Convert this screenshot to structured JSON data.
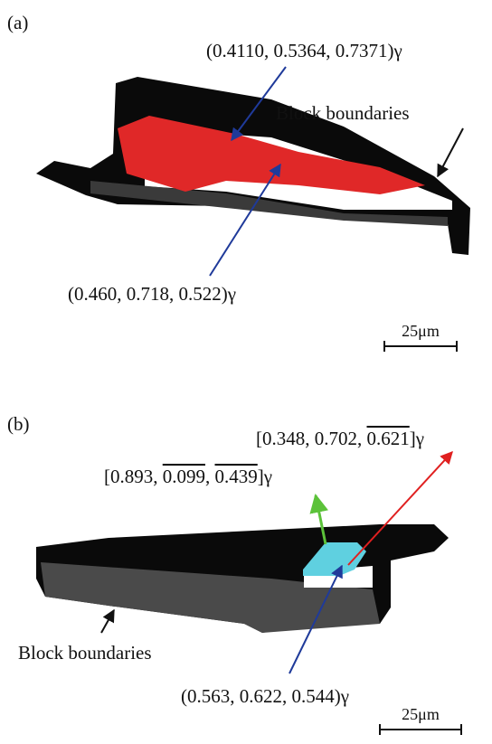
{
  "panel_a": {
    "tag": "(a)",
    "labels": [
      "(0.4110, 0.5364, 0.7371)γ",
      "Block boundaries",
      "(0.460, 0.718, 0.522)γ"
    ],
    "scale": "25μm"
  },
  "panel_b": {
    "tag": "(b)",
    "labels": [
      {
        "parts": [
          "[0.348, 0.702, ",
          "0.621",
          "]γ"
        ]
      },
      {
        "parts": [
          "[0.893, ",
          "0.099",
          ", ",
          "0.439",
          "]γ"
        ]
      },
      "Block boundaries",
      "(0.563, 0.622, 0.544)γ"
    ],
    "scale": "25μm"
  }
}
